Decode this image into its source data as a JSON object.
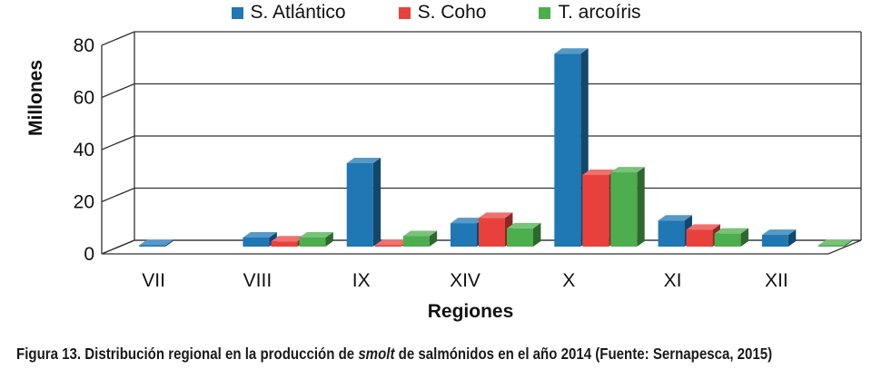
{
  "chart_data": {
    "type": "bar",
    "title": "",
    "xlabel": "Regiones",
    "ylabel": "Millones",
    "ylim": [
      0,
      80
    ],
    "yticks": [
      "0",
      "20",
      "40",
      "60",
      "80"
    ],
    "grid": true,
    "legend_position": "top",
    "categories": [
      "VII",
      "VIII",
      "IX",
      "XIV",
      "X",
      "XI",
      "XII"
    ],
    "series": [
      {
        "name": "S. Atlántico",
        "color": "#1f77b4",
        "values": [
          0.5,
          3.5,
          32,
          9,
          74,
          10,
          4.5
        ]
      },
      {
        "name": "S. Coho",
        "color": "#e8413c",
        "values": [
          0,
          2,
          0.5,
          11,
          27.5,
          6.5,
          0
        ]
      },
      {
        "name": "T. arcoíris",
        "color": "#4cae4c",
        "values": [
          0,
          3.5,
          4,
          7,
          28.5,
          5,
          0.5
        ]
      }
    ]
  },
  "caption": {
    "prefix": "Figura 13. Distribución regional en la producción de ",
    "emphasis": "smolt",
    "suffix": " de salmónidos en el año 2014 (Fuente: Sernapesca, 2015)"
  }
}
